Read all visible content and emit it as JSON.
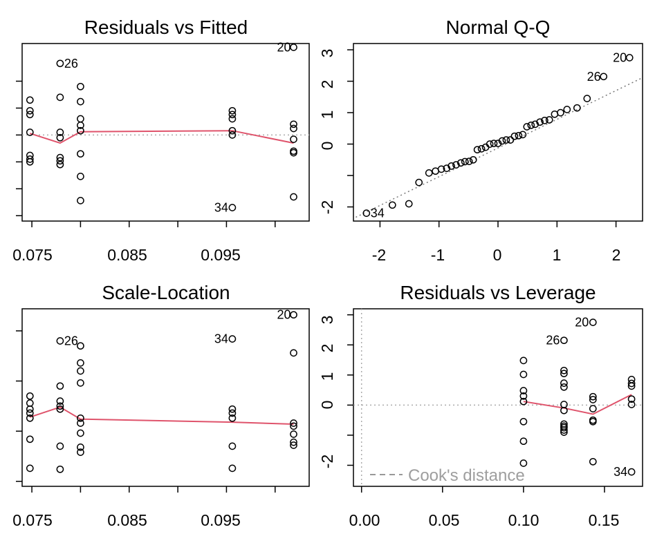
{
  "panels": [
    {
      "title": "Residuals vs Fitted",
      "x_ticks": [
        "0.075",
        "0.085",
        "0.095"
      ],
      "y_ticks": [],
      "point_labels": [
        "26",
        "20",
        "34"
      ]
    },
    {
      "title": "Normal Q-Q",
      "x_ticks": [
        "-2",
        "-1",
        "0",
        "1",
        "2"
      ],
      "y_ticks": [
        "3",
        "2",
        "1",
        "0",
        "-2"
      ],
      "point_labels": [
        "20",
        "26",
        "34"
      ]
    },
    {
      "title": "Scale-Location",
      "x_ticks": [
        "0.075",
        "0.085",
        "0.095"
      ],
      "y_ticks": [],
      "point_labels": [
        "20",
        "26",
        "34"
      ]
    },
    {
      "title": "Residuals vs Leverage",
      "x_ticks": [
        "0.00",
        "0.05",
        "0.10",
        "0.15"
      ],
      "y_ticks": [
        "3",
        "2",
        "1",
        "0",
        "-2"
      ],
      "point_labels": [
        "20",
        "26",
        "34"
      ],
      "legend": "Cook's distance"
    }
  ],
  "chart_data": [
    {
      "type": "scatter",
      "title": "Residuals vs Fitted",
      "xlabel": "",
      "ylabel": "",
      "xlim": [
        0.074,
        0.1035
      ],
      "ylim": [
        -1.6,
        1.7
      ],
      "x_ticks": [
        0.075,
        0.085,
        0.095
      ],
      "points": [
        [
          0.0748,
          0.65
        ],
        [
          0.0748,
          0.45
        ],
        [
          0.0748,
          0.38
        ],
        [
          0.0748,
          0.05
        ],
        [
          0.0748,
          -0.38
        ],
        [
          0.0748,
          -0.45
        ],
        [
          0.0748,
          -0.5
        ],
        [
          0.0779,
          1.33
        ],
        [
          0.0779,
          0.7
        ],
        [
          0.0779,
          0.05
        ],
        [
          0.0779,
          -0.05
        ],
        [
          0.0779,
          -0.42
        ],
        [
          0.0779,
          -0.48
        ],
        [
          0.0779,
          -0.55
        ],
        [
          0.08,
          0.9
        ],
        [
          0.08,
          0.62
        ],
        [
          0.08,
          0.3
        ],
        [
          0.08,
          0.18
        ],
        [
          0.08,
          0.08
        ],
        [
          0.08,
          -0.35
        ],
        [
          0.08,
          -0.77
        ],
        [
          0.08,
          -1.22
        ],
        [
          0.0956,
          0.45
        ],
        [
          0.0956,
          0.38
        ],
        [
          0.0956,
          0.3
        ],
        [
          0.0956,
          0.08
        ],
        [
          0.0956,
          0.0
        ],
        [
          0.0956,
          -1.35
        ],
        [
          0.1019,
          1.63
        ],
        [
          0.1019,
          0.2
        ],
        [
          0.1019,
          0.12
        ],
        [
          0.1019,
          -0.08
        ],
        [
          0.1019,
          -0.3
        ],
        [
          0.1019,
          -0.33
        ],
        [
          0.1019,
          -1.15
        ]
      ],
      "labels": [
        {
          "text": "26",
          "x": 0.0779,
          "y": 1.33
        },
        {
          "text": "20",
          "x": 0.1019,
          "y": 1.63
        },
        {
          "text": "34",
          "x": 0.0956,
          "y": -1.35
        }
      ],
      "smooth": [
        [
          0.0748,
          0.03
        ],
        [
          0.0779,
          -0.15
        ],
        [
          0.08,
          0.06
        ],
        [
          0.0956,
          0.08
        ],
        [
          0.1019,
          -0.15
        ]
      ],
      "reference_line": {
        "y": 0
      },
      "grid": false
    },
    {
      "type": "scatter",
      "title": "Normal Q-Q",
      "xlabel": "",
      "ylabel": "",
      "xlim": [
        -2.45,
        2.45
      ],
      "ylim": [
        -2.45,
        3.2
      ],
      "x_ticks": [
        -2,
        -1,
        0,
        1,
        2
      ],
      "y_ticks": [
        3,
        2,
        1,
        0,
        -2
      ],
      "points": [
        [
          -2.23,
          -2.2
        ],
        [
          -1.79,
          -1.94
        ],
        [
          -1.51,
          -1.9
        ],
        [
          -1.34,
          -1.22
        ],
        [
          -1.17,
          -0.92
        ],
        [
          -1.06,
          -0.86
        ],
        [
          -0.96,
          -0.8
        ],
        [
          -0.87,
          -0.77
        ],
        [
          -0.79,
          -0.7
        ],
        [
          -0.71,
          -0.66
        ],
        [
          -0.63,
          -0.6
        ],
        [
          -0.56,
          -0.56
        ],
        [
          -0.49,
          -0.55
        ],
        [
          -0.42,
          -0.5
        ],
        [
          -0.35,
          -0.18
        ],
        [
          -0.28,
          -0.15
        ],
        [
          -0.21,
          -0.1
        ],
        [
          -0.14,
          0.0
        ],
        [
          -0.07,
          0.02
        ],
        [
          0.0,
          0.02
        ],
        [
          0.07,
          0.1
        ],
        [
          0.14,
          0.13
        ],
        [
          0.21,
          0.13
        ],
        [
          0.28,
          0.25
        ],
        [
          0.35,
          0.27
        ],
        [
          0.42,
          0.3
        ],
        [
          0.49,
          0.55
        ],
        [
          0.56,
          0.6
        ],
        [
          0.63,
          0.63
        ],
        [
          0.71,
          0.7
        ],
        [
          0.79,
          0.75
        ],
        [
          0.87,
          0.77
        ],
        [
          0.96,
          0.95
        ],
        [
          1.06,
          1.0
        ],
        [
          1.17,
          1.1
        ],
        [
          1.34,
          1.15
        ],
        [
          1.51,
          1.45
        ],
        [
          1.79,
          2.15
        ],
        [
          2.23,
          2.75
        ]
      ],
      "labels": [
        {
          "text": "20",
          "x": 2.23,
          "y": 2.75
        },
        {
          "text": "26",
          "x": 1.79,
          "y": 2.15
        },
        {
          "text": "34",
          "x": -2.23,
          "y": -2.2
        }
      ],
      "qq_line": [
        [
          -2.6,
          -2.5
        ],
        [
          2.6,
          2.25
        ]
      ],
      "grid": false
    },
    {
      "type": "scatter",
      "title": "Scale-Location",
      "xlabel": "",
      "ylabel": "",
      "xlim": [
        0.074,
        0.1035
      ],
      "ylim": [
        -0.05,
        1.72
      ],
      "x_ticks": [
        0.075,
        0.085,
        0.095
      ],
      "points": [
        [
          0.0748,
          0.85
        ],
        [
          0.0748,
          0.78
        ],
        [
          0.0748,
          0.72
        ],
        [
          0.0748,
          0.68
        ],
        [
          0.0748,
          0.63
        ],
        [
          0.0748,
          0.42
        ],
        [
          0.0748,
          0.13
        ],
        [
          0.0779,
          1.4
        ],
        [
          0.0779,
          0.95
        ],
        [
          0.0779,
          0.8
        ],
        [
          0.0779,
          0.75
        ],
        [
          0.0779,
          0.72
        ],
        [
          0.0779,
          0.35
        ],
        [
          0.0779,
          0.12
        ],
        [
          0.08,
          1.35
        ],
        [
          0.08,
          1.18
        ],
        [
          0.08,
          1.1
        ],
        [
          0.08,
          0.98
        ],
        [
          0.08,
          0.63
        ],
        [
          0.08,
          0.58
        ],
        [
          0.08,
          0.48
        ],
        [
          0.08,
          0.34
        ],
        [
          0.08,
          0.29
        ],
        [
          0.0956,
          1.42
        ],
        [
          0.0956,
          0.72
        ],
        [
          0.0956,
          0.68
        ],
        [
          0.0956,
          0.63
        ],
        [
          0.0956,
          0.35
        ],
        [
          0.0956,
          0.13
        ],
        [
          0.1019,
          1.66
        ],
        [
          0.1019,
          1.28
        ],
        [
          0.1019,
          0.58
        ],
        [
          0.1019,
          0.55
        ],
        [
          0.1019,
          0.47
        ],
        [
          0.1019,
          0.39
        ],
        [
          0.1019,
          0.36
        ]
      ],
      "labels": [
        {
          "text": "20",
          "x": 0.1019,
          "y": 1.66
        },
        {
          "text": "26",
          "x": 0.0779,
          "y": 1.4
        },
        {
          "text": "34",
          "x": 0.0956,
          "y": 1.42
        }
      ],
      "smooth": [
        [
          0.0748,
          0.64
        ],
        [
          0.0779,
          0.74
        ],
        [
          0.08,
          0.62
        ],
        [
          0.0956,
          0.59
        ],
        [
          0.1019,
          0.57
        ]
      ],
      "grid": false
    },
    {
      "type": "scatter",
      "title": "Residuals vs Leverage",
      "xlabel": "",
      "ylabel": "",
      "xlim": [
        -0.005,
        0.1735
      ],
      "ylim": [
        -2.7,
        3.2
      ],
      "x_ticks": [
        0.0,
        0.05,
        0.1,
        0.15
      ],
      "y_ticks": [
        3,
        2,
        1,
        0,
        -2
      ],
      "points": [
        [
          0.1,
          1.48
        ],
        [
          0.1,
          1.02
        ],
        [
          0.1,
          0.48
        ],
        [
          0.1,
          0.3
        ],
        [
          0.1,
          0.12
        ],
        [
          0.1,
          -0.55
        ],
        [
          0.1,
          -1.2
        ],
        [
          0.1,
          -1.93
        ],
        [
          0.125,
          2.15
        ],
        [
          0.125,
          1.15
        ],
        [
          0.125,
          1.05
        ],
        [
          0.125,
          0.73
        ],
        [
          0.125,
          0.6
        ],
        [
          0.125,
          0.02
        ],
        [
          0.125,
          -0.18
        ],
        [
          0.125,
          -0.63
        ],
        [
          0.125,
          -0.7
        ],
        [
          0.125,
          -0.75
        ],
        [
          0.125,
          -0.83
        ],
        [
          0.125,
          -0.9
        ],
        [
          0.1429,
          2.75
        ],
        [
          0.1429,
          0.28
        ],
        [
          0.1429,
          0.18
        ],
        [
          0.1429,
          -0.12
        ],
        [
          0.1429,
          -0.5
        ],
        [
          0.1429,
          -0.55
        ],
        [
          0.1429,
          -1.88
        ],
        [
          0.1667,
          0.85
        ],
        [
          0.1667,
          0.72
        ],
        [
          0.1667,
          0.63
        ],
        [
          0.1667,
          0.2
        ],
        [
          0.1667,
          0.02
        ],
        [
          0.1667,
          -2.22
        ]
      ],
      "labels": [
        {
          "text": "20",
          "x": 0.1429,
          "y": 2.75
        },
        {
          "text": "26",
          "x": 0.125,
          "y": 2.15
        },
        {
          "text": "34",
          "x": 0.1667,
          "y": -2.22
        }
      ],
      "smooth": [
        [
          0.1,
          0.12
        ],
        [
          0.125,
          -0.1
        ],
        [
          0.1429,
          -0.3
        ],
        [
          0.1667,
          0.35
        ]
      ],
      "reference_line": {
        "x": 0,
        "y": 0
      },
      "legend": {
        "text": "Cook's distance",
        "position": "bottom-left"
      },
      "grid": false
    }
  ]
}
